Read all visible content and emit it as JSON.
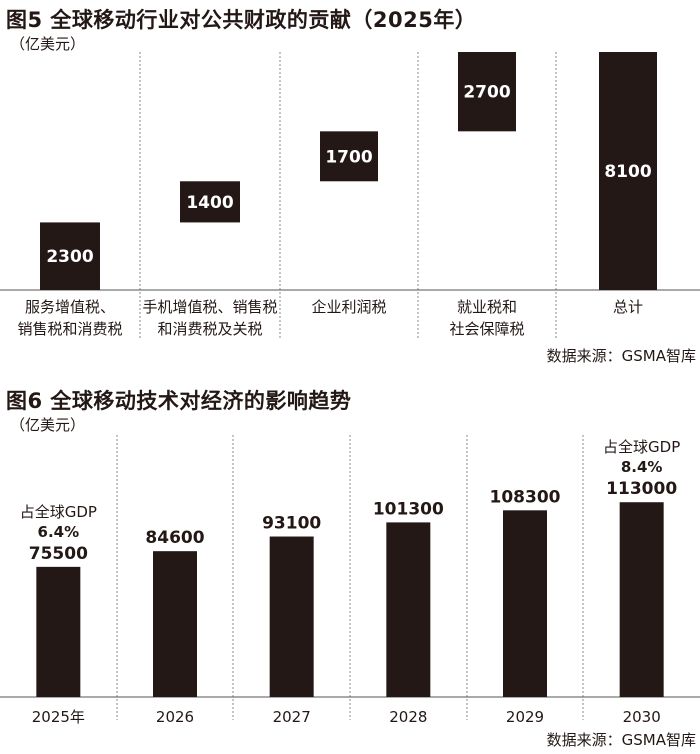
{
  "chart_data": [
    {
      "type": "bar",
      "title": "图5 全球移动行业对公共财政的贡献（2025年）",
      "unit": "（亿美元）",
      "source": "数据来源：GSMA智库",
      "categories": [
        [
          "服务增值税、",
          "销售税和消费税"
        ],
        [
          "手机增值税、销售税",
          "和消费税及关税"
        ],
        [
          "企业利润税"
        ],
        [
          "就业税和",
          "社会保障税"
        ],
        [
          "总计"
        ]
      ],
      "values": [
        2300,
        1400,
        1700,
        2700,
        8100
      ],
      "labels": [
        "2300",
        "1400",
        "1700",
        "2700",
        "8100"
      ],
      "waterfall": true,
      "ylim": [
        0,
        8100
      ],
      "grid": "vertical-dashed",
      "bar_color": "#231815"
    },
    {
      "type": "bar",
      "title": "图6 全球移动技术对经济的影响趋势",
      "unit": "（亿美元）",
      "source": "数据来源：GSMA智库",
      "categories": [
        "2025年",
        "2026",
        "2027",
        "2028",
        "2029",
        "2030"
      ],
      "values": [
        75500,
        84600,
        93100,
        101300,
        108300,
        113000
      ],
      "labels": [
        "75500",
        "84600",
        "93100",
        "101300",
        "108300",
        "113000"
      ],
      "annotations": [
        {
          "category": "2025年",
          "text": "占全球GDP",
          "value": "6.4%"
        },
        {
          "category": "2030",
          "text": "占全球GDP",
          "value": "8.4%"
        }
      ],
      "ylim": [
        0,
        152000
      ],
      "grid": "vertical-dashed",
      "bar_color": "#231815"
    }
  ]
}
